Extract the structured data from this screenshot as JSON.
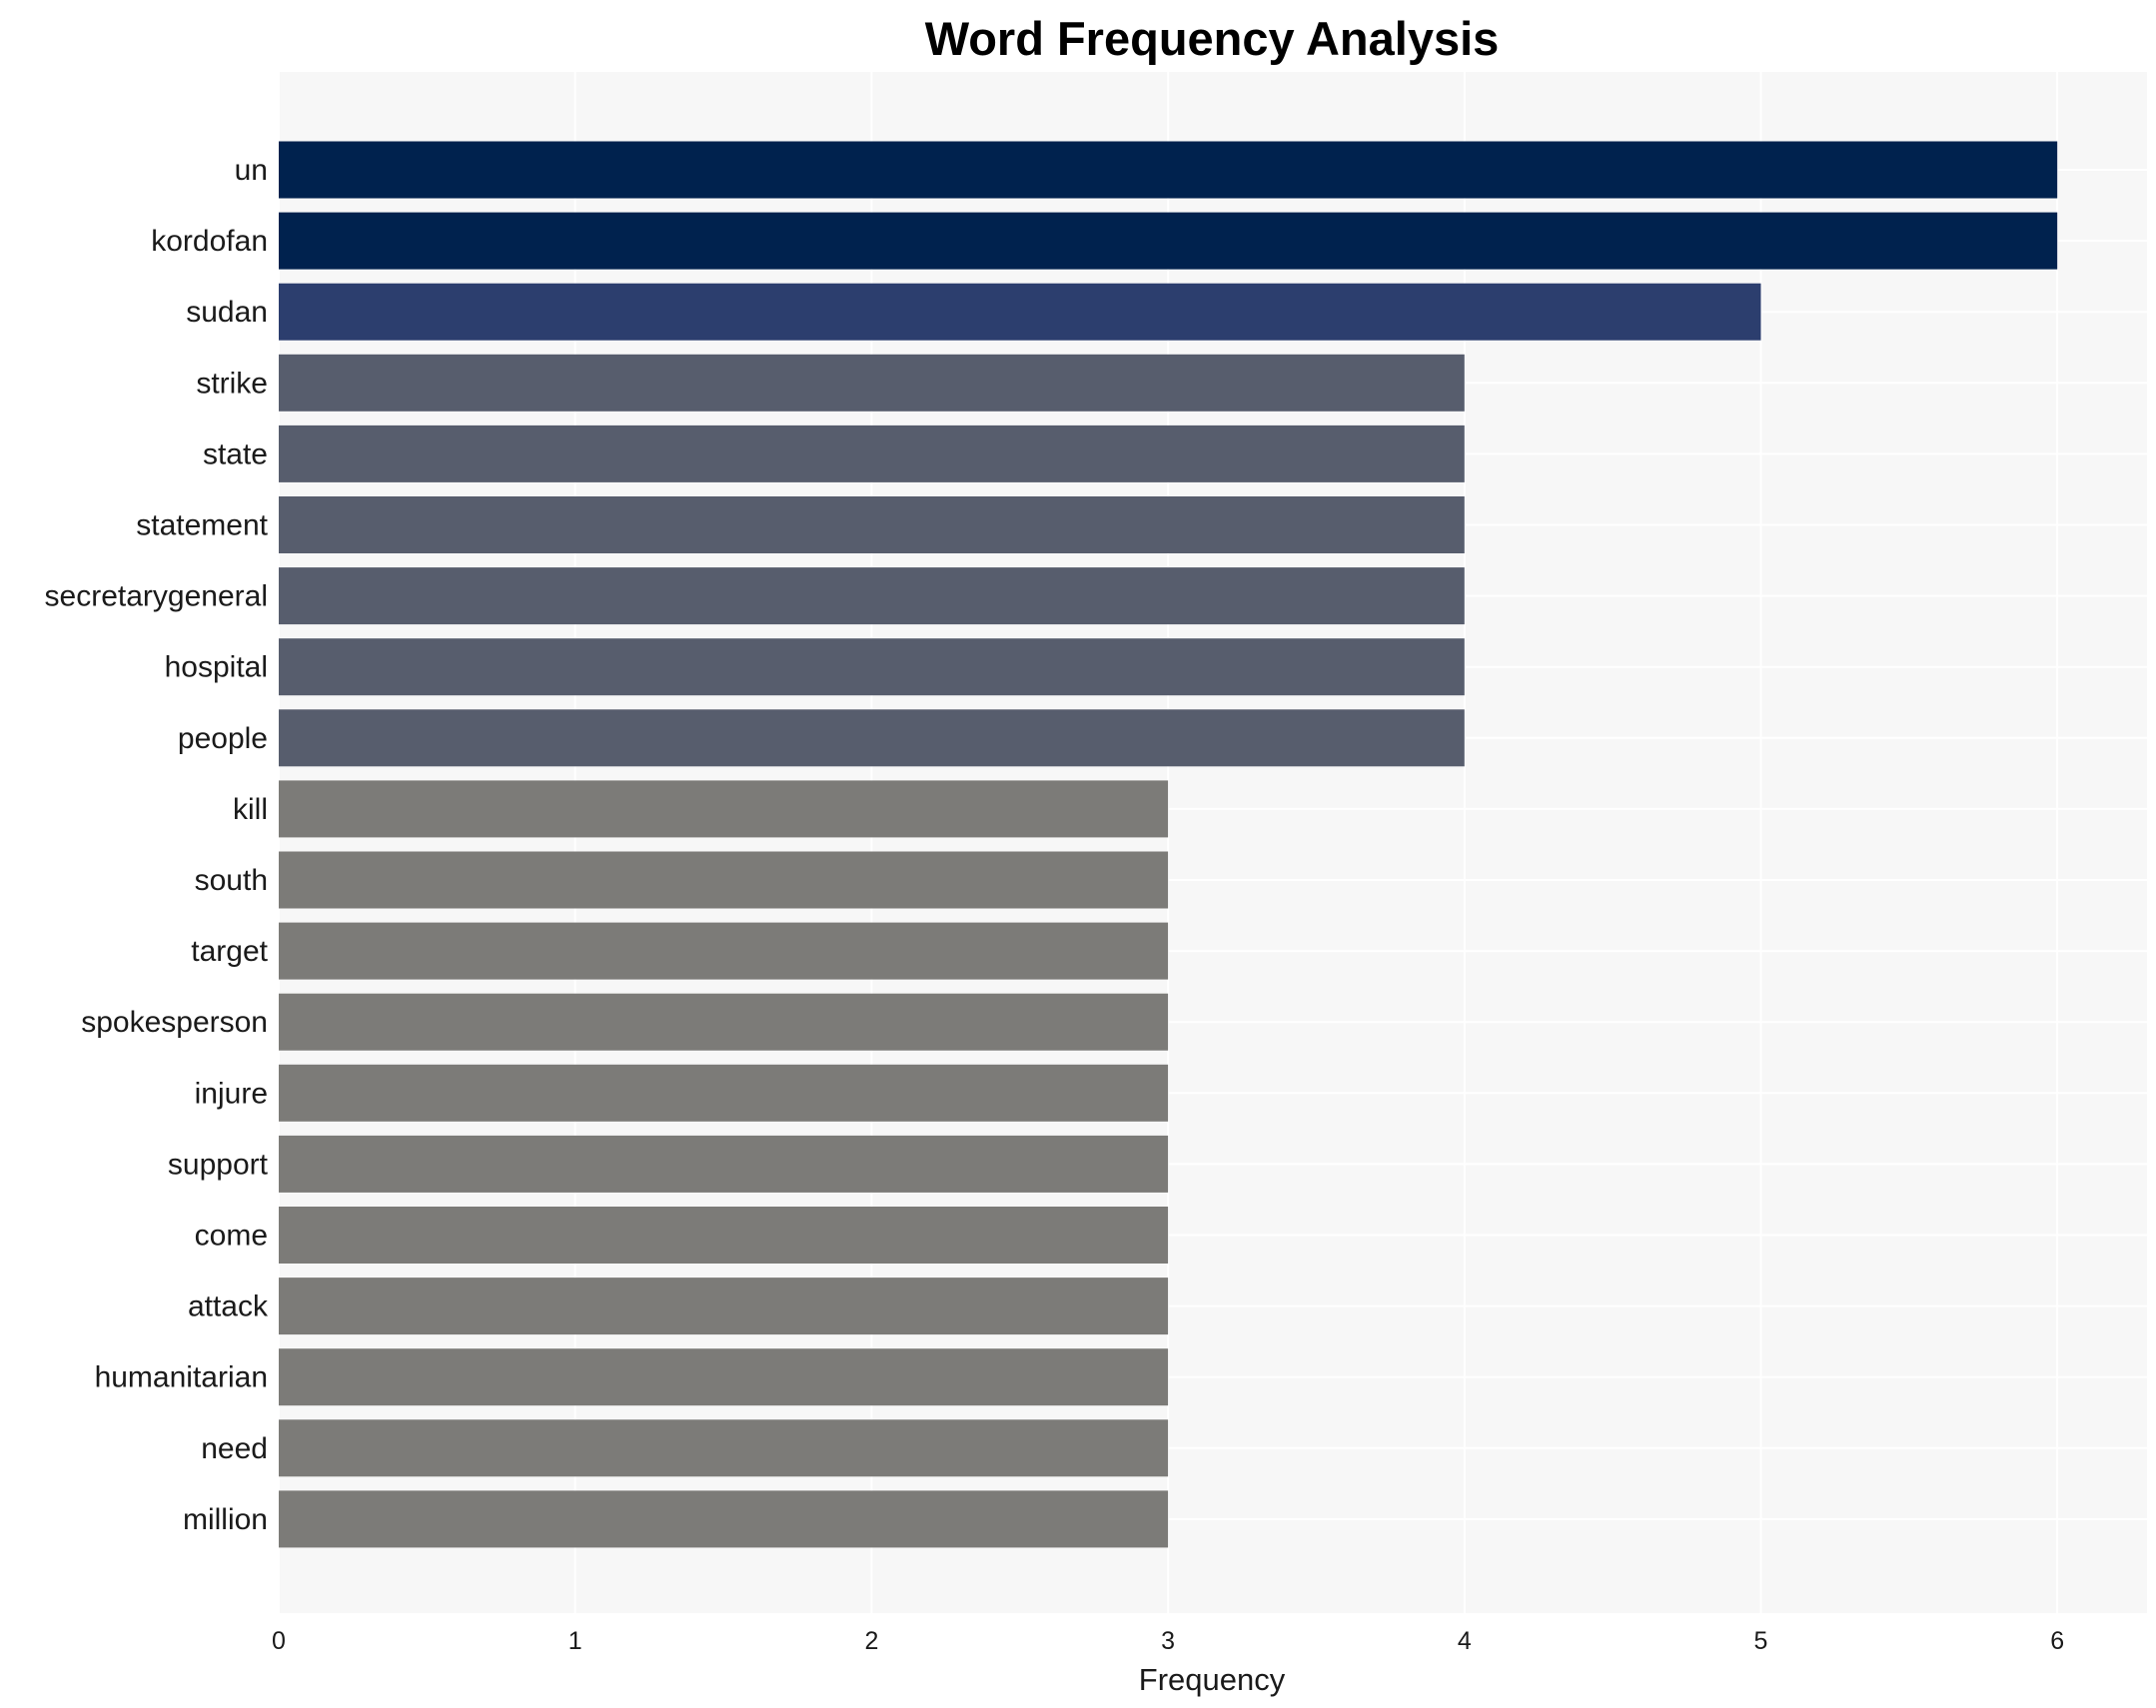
{
  "chart_data": {
    "type": "bar",
    "orientation": "horizontal",
    "title": "Word Frequency Analysis",
    "xlabel": "Frequency",
    "ylabel": "",
    "xlim": [
      0,
      6.3
    ],
    "xticks": [
      0,
      1,
      2,
      3,
      4,
      5,
      6
    ],
    "grid": true,
    "categories": [
      "un",
      "kordofan",
      "sudan",
      "strike",
      "state",
      "statement",
      "secretarygeneral",
      "hospital",
      "people",
      "kill",
      "south",
      "target",
      "spokesperson",
      "injure",
      "support",
      "come",
      "attack",
      "humanitarian",
      "need",
      "million"
    ],
    "values": [
      6,
      6,
      5,
      4,
      4,
      4,
      4,
      4,
      4,
      3,
      3,
      3,
      3,
      3,
      3,
      3,
      3,
      3,
      3,
      3
    ],
    "colors_by_value": {
      "6": "#00224e",
      "5": "#2c3e6e",
      "4": "#575d6d",
      "3": "#7c7b78"
    },
    "background": "#f7f7f7"
  }
}
